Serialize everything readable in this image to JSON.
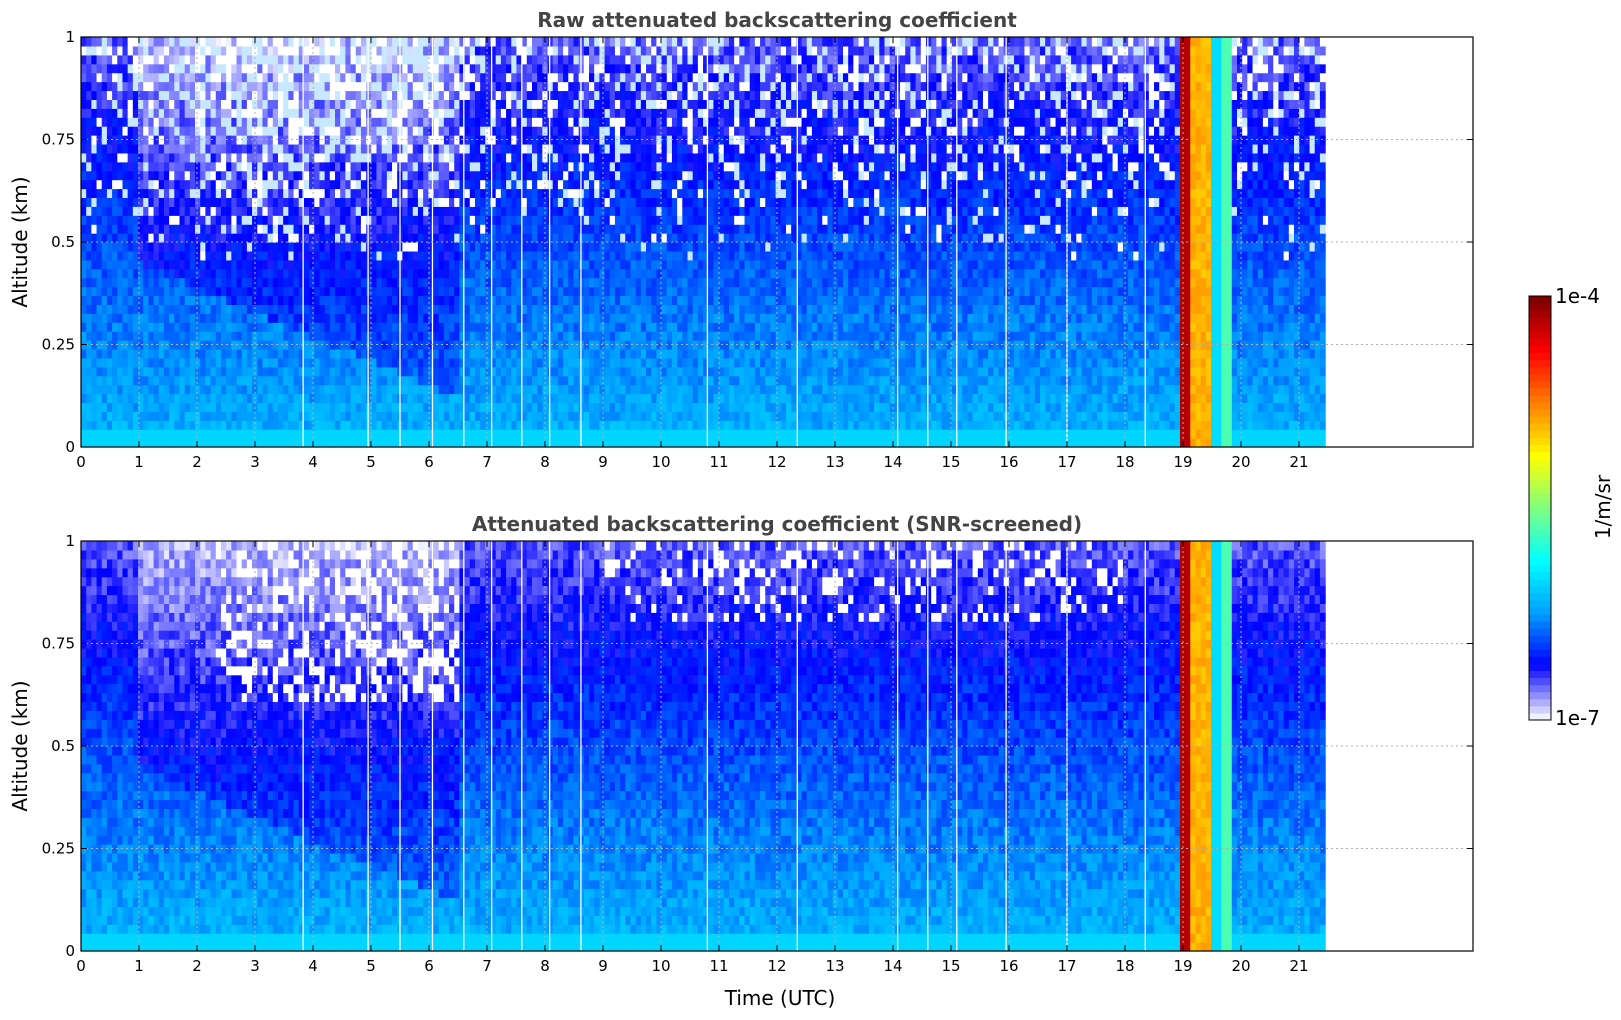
{
  "chart_data": [
    {
      "type": "heatmap",
      "title": "Raw attenuated backscattering coefficient",
      "xlabel": "",
      "ylabel": "Altitude (km)",
      "xlim": [
        0,
        24
      ],
      "ylim": [
        0,
        1
      ],
      "x_ticks": [
        "0",
        "1",
        "2",
        "3",
        "4",
        "5",
        "6",
        "7",
        "8",
        "9",
        "10",
        "11",
        "12",
        "13",
        "14",
        "15",
        "16",
        "17",
        "18",
        "19",
        "20",
        "21"
      ],
      "y_ticks": [
        "0",
        "0.25",
        "0.5",
        "0.75",
        "1"
      ],
      "data_end_time": 21.45,
      "grid": true,
      "colorscale": "jet",
      "screened": false,
      "features": [
        {
          "time_start": 18.95,
          "time_end": 19.1,
          "description_level": "highest"
        },
        {
          "time_start": 19.1,
          "time_end": 19.5,
          "description_level": "high"
        },
        {
          "time_start": 19.65,
          "time_end": 19.85,
          "description_level": "medium"
        }
      ]
    },
    {
      "type": "heatmap",
      "title": "Attenuated backscattering coefficient (SNR-screened)",
      "xlabel": "Time (UTC)",
      "ylabel": "Altitude (km)",
      "xlim": [
        0,
        24
      ],
      "ylim": [
        0,
        1
      ],
      "x_ticks": [
        "0",
        "1",
        "2",
        "3",
        "4",
        "5",
        "6",
        "7",
        "8",
        "9",
        "10",
        "11",
        "12",
        "13",
        "14",
        "15",
        "16",
        "17",
        "18",
        "19",
        "20",
        "21"
      ],
      "y_ticks": [
        "0",
        "0.25",
        "0.5",
        "0.75",
        "1"
      ],
      "data_end_time": 21.45,
      "grid": true,
      "colorscale": "jet",
      "screened": true
    }
  ],
  "colorbar": {
    "max_label": "1e-4",
    "min_label": "1e-7",
    "unit": "1/m/sr",
    "scale": "log",
    "range": [
      1e-07,
      0.0001
    ],
    "stops": [
      "#f0f0ff",
      "#0000ff",
      "#00a0ff",
      "#00ffff",
      "#80ff80",
      "#ffff00",
      "#ff8000",
      "#ff0000",
      "#800000"
    ]
  }
}
